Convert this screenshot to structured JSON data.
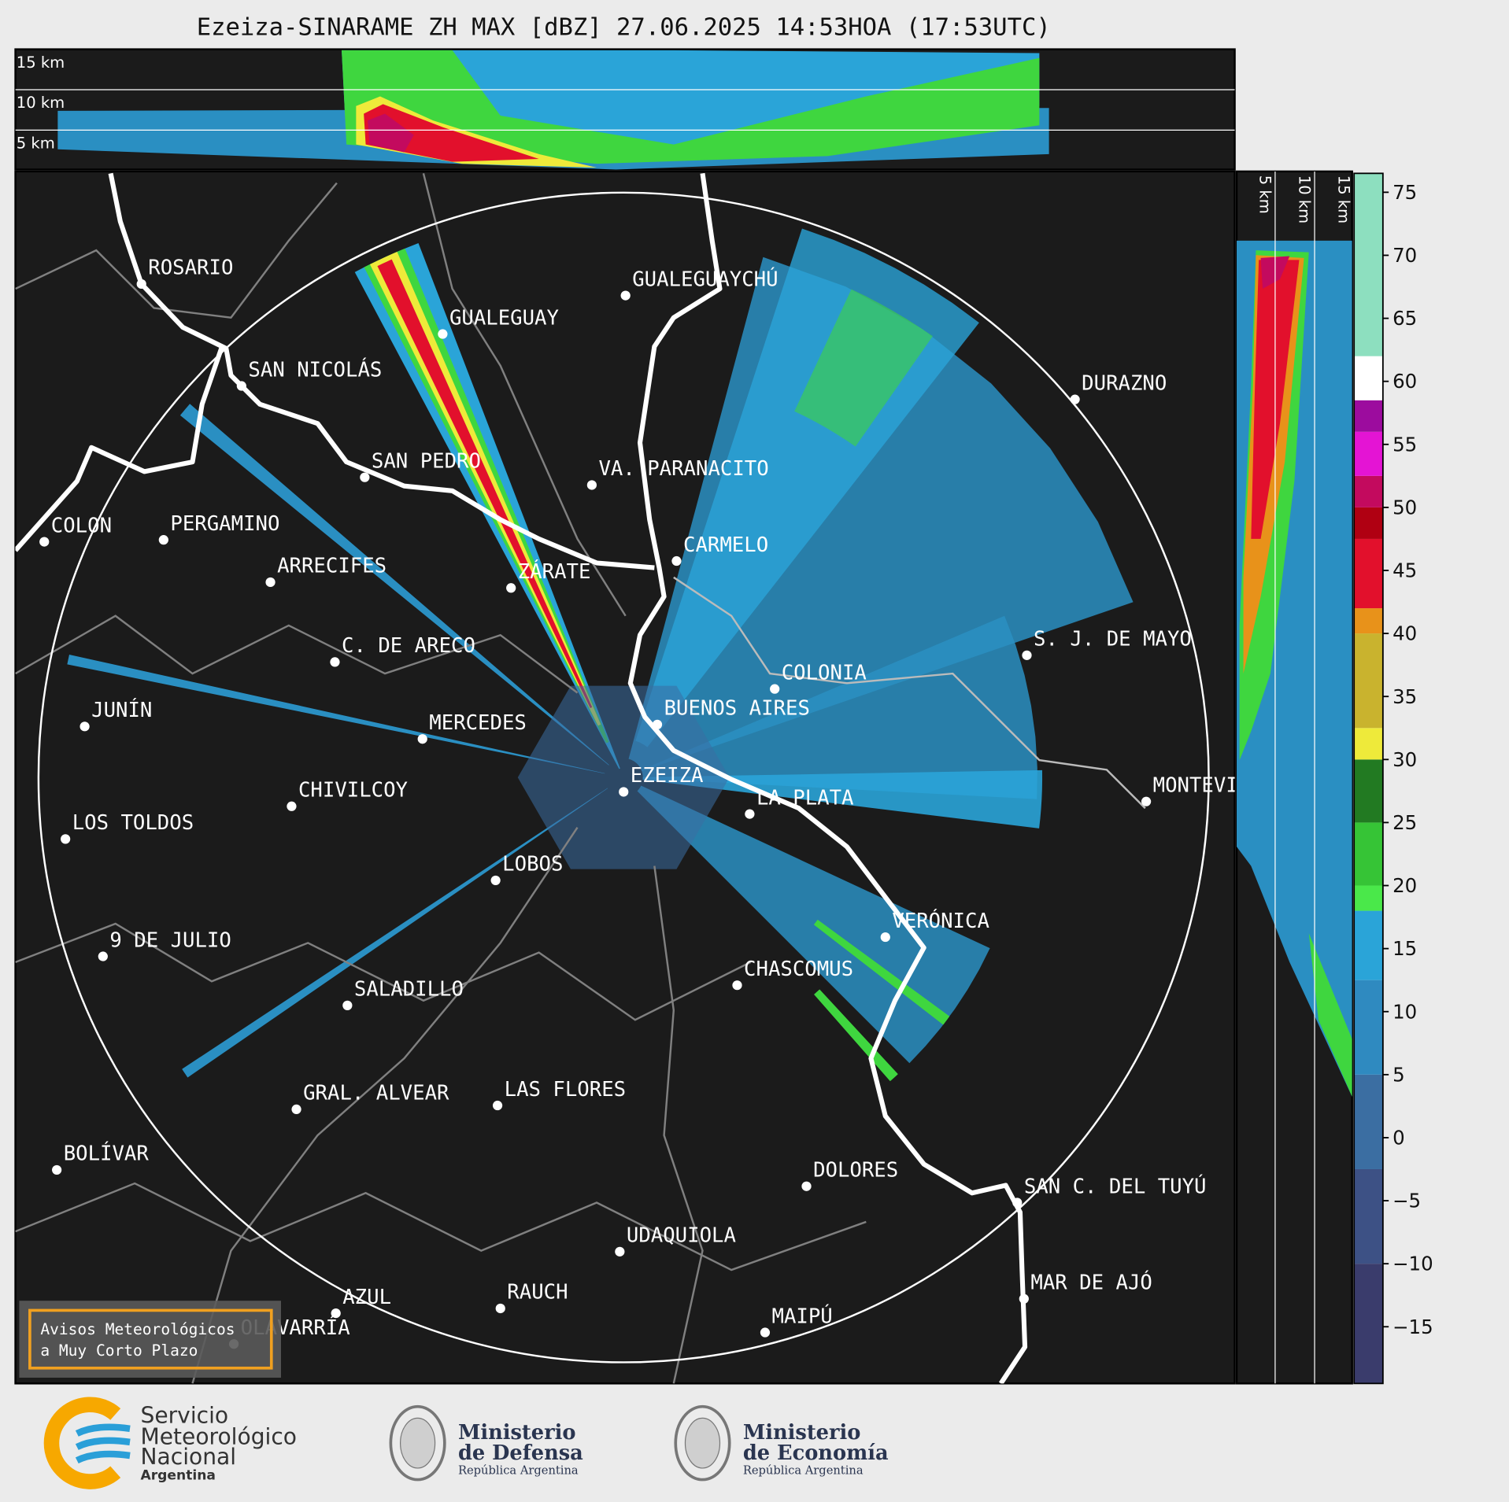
{
  "title": "Ezeiza-SINARAME ZH MAX [dBZ] 27.06.2025 14:53HOA (17:53UTC)",
  "cities": [
    "ROSARIO",
    "GUALEGUAYCHÚ",
    "GUALEGUAY",
    "SAN NICOLÁS",
    "DURAZNO",
    "SAN PEDRO",
    "VA. PARANACITO",
    "COLON",
    "PERGAMINO",
    "CARMELO",
    "ARRECIFES",
    "ZÁRATE",
    "S. J. DE MAYO",
    "C. DE ARECO",
    "COLONIA",
    "BUENOS AIRES",
    "JUNÍN",
    "MERCEDES",
    "EZEIZA",
    "MONTEVIDEO",
    "LA PLATA",
    "CHIVILCOY",
    "LOS TOLDOS",
    "LOBOS",
    "VERÓNICA",
    "9 DE JULIO",
    "CHASCOMUS",
    "SALADILLO",
    "GRAL. ALVEAR",
    "LAS FLORES",
    "BOLÍVAR",
    "DOLORES",
    "SAN C. DEL TUYÚ",
    "UDAQUIOLA",
    "MAR DE AJÓ",
    "RAUCH",
    "AZUL",
    "OLAVARRÍA",
    "MAIPÚ"
  ],
  "height_labels_top": [
    "15 km",
    "10 km",
    "5 km"
  ],
  "height_labels_side": [
    "5 km",
    "10 km",
    "15 km"
  ],
  "colorbar": {
    "lim": [
      -19.5,
      76.5
    ],
    "ticks": [
      75,
      70,
      65,
      60,
      55,
      50,
      45,
      40,
      35,
      30,
      25,
      20,
      15,
      10,
      5,
      0,
      {
        "value": -5,
        "label": "−5"
      },
      {
        "value": -10,
        "label": "−10"
      },
      {
        "value": -15,
        "label": "−15"
      }
    ],
    "segments": [
      {
        "from": -19.5,
        "to": -10,
        "color": "#3a3c6c"
      },
      {
        "from": -10,
        "to": -2.5,
        "color": "#3d5185"
      },
      {
        "from": -2.5,
        "to": 5,
        "color": "#3b6ea2"
      },
      {
        "from": 5,
        "to": 12.5,
        "color": "#2f8ac0"
      },
      {
        "from": 12.5,
        "to": 18,
        "color": "#2aa4d8"
      },
      {
        "from": 18,
        "to": 20,
        "color": "#4ae84a"
      },
      {
        "from": 20,
        "to": 25,
        "color": "#36c436"
      },
      {
        "from": 25,
        "to": 30,
        "color": "#227a22"
      },
      {
        "from": 30,
        "to": 32.5,
        "color": "#eeea3a"
      },
      {
        "from": 32.5,
        "to": 40,
        "color": "#c9b32e"
      },
      {
        "from": 40,
        "to": 42,
        "color": "#e8921a"
      },
      {
        "from": 42,
        "to": 47.5,
        "color": "#e2102c"
      },
      {
        "from": 47.5,
        "to": 50,
        "color": "#b00012"
      },
      {
        "from": 50,
        "to": 52.5,
        "color": "#c30a5e"
      },
      {
        "from": 52.5,
        "to": 56,
        "color": "#e414d4"
      },
      {
        "from": 56,
        "to": 58.5,
        "color": "#9c0c9e"
      },
      {
        "from": 58.5,
        "to": 62,
        "color": "#ffffff"
      },
      {
        "from": 62,
        "to": 76.5,
        "color": "#8ddfbf"
      }
    ]
  },
  "notice": [
    "Avisos Meteorológicos",
    "a Muy Corto Plazo"
  ],
  "logos": [
    {
      "lines": [
        "Servicio",
        "Meteorológico",
        "Nacional",
        "Argentina"
      ]
    },
    {
      "lines": [
        "Ministerio",
        "de Defensa",
        "República Argentina"
      ]
    },
    {
      "lines": [
        "Ministerio",
        "de Economía",
        "República Argentina"
      ]
    }
  ]
}
